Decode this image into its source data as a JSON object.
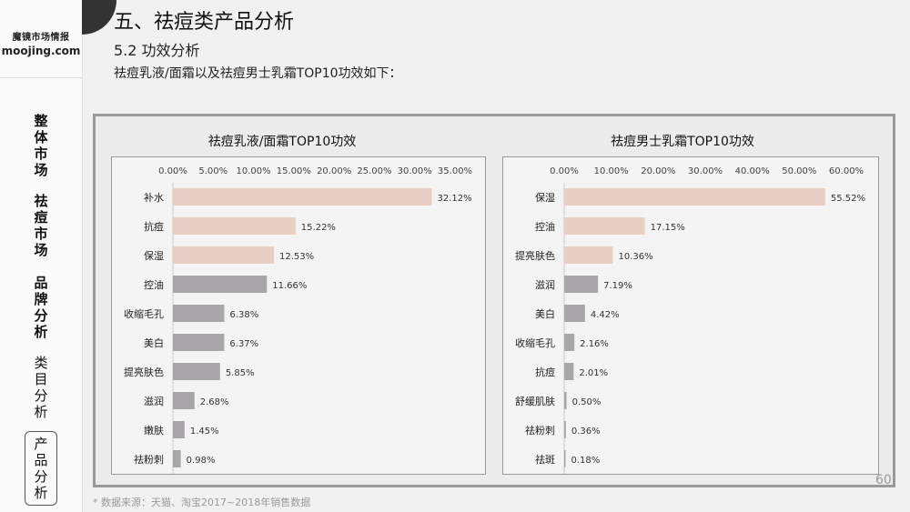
{
  "brand": {
    "cn": "魔镜市场情报",
    "en": "moojing.com"
  },
  "nav": [
    "整体市场",
    "祛痘市场",
    "品牌分析",
    "类目分析",
    "产品分析"
  ],
  "header": {
    "title": "五、祛痘类产品分析",
    "subtitle": "5.2 功效分析",
    "description": "祛痘乳液/面霜以及祛痘男士乳霜TOP10功效如下："
  },
  "page_number": "60",
  "source": "* 数据来源：天猫、淘宝2017~2018年销售数据",
  "colors": {
    "pink": "#e8cfc6",
    "gray": "#a8a6a9"
  },
  "chart_data": [
    {
      "type": "bar",
      "orientation": "horizontal",
      "title": "祛痘乳液/面霜TOP10功效",
      "categories": [
        "补水",
        "抗痘",
        "保湿",
        "控油",
        "收缩毛孔",
        "美白",
        "提亮肤色",
        "滋润",
        "嫩肤",
        "祛粉刺"
      ],
      "values": [
        32.12,
        15.22,
        12.53,
        11.66,
        6.38,
        6.37,
        5.85,
        2.68,
        1.45,
        0.98
      ],
      "value_labels": [
        "32.12%",
        "15.22%",
        "12.53%",
        "11.66%",
        "6.38%",
        "6.37%",
        "5.85%",
        "2.68%",
        "1.45%",
        "0.98%"
      ],
      "highlight_count": 3,
      "xlim": [
        0,
        35
      ],
      "xticks": [
        "0.00%",
        "5.00%",
        "10.00%",
        "15.00%",
        "20.00%",
        "25.00%",
        "30.00%",
        "35.00%"
      ]
    },
    {
      "type": "bar",
      "orientation": "horizontal",
      "title": "祛痘男士乳霜TOP10功效",
      "categories": [
        "保湿",
        "控油",
        "提亮肤色",
        "滋润",
        "美白",
        "收缩毛孔",
        "抗痘",
        "舒缓肌肤",
        "祛粉刺",
        "祛斑"
      ],
      "values": [
        55.52,
        17.15,
        10.36,
        7.19,
        4.42,
        2.16,
        2.01,
        0.5,
        0.36,
        0.18
      ],
      "value_labels": [
        "55.52%",
        "17.15%",
        "10.36%",
        "7.19%",
        "4.42%",
        "2.16%",
        "2.01%",
        "0.50%",
        "0.36%",
        "0.18%"
      ],
      "highlight_count": 3,
      "xlim": [
        0,
        60
      ],
      "xticks": [
        "0.00%",
        "10.00%",
        "20.00%",
        "30.00%",
        "40.00%",
        "50.00%",
        "60.00%"
      ]
    }
  ]
}
